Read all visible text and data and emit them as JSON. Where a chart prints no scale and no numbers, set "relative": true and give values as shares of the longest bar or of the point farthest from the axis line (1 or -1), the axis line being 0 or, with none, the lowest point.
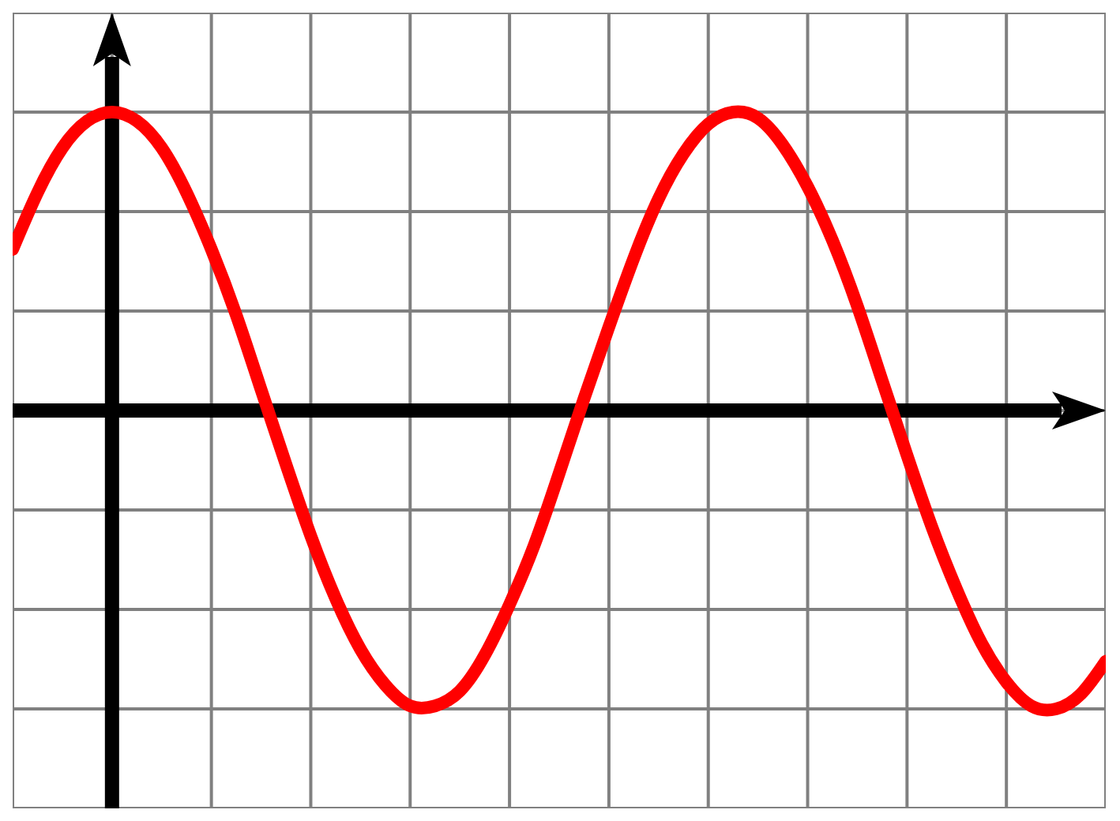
{
  "chart_data": {
    "type": "line",
    "relative": true,
    "grid": true,
    "marker": "none",
    "line_style": "solid",
    "categories": [
      null,
      null,
      null,
      null,
      null,
      null,
      null,
      null,
      null,
      null,
      null,
      null,
      null,
      null,
      null,
      null,
      null,
      null,
      null,
      null,
      null,
      null,
      null,
      null,
      null,
      null,
      null,
      null,
      null,
      null,
      null,
      null,
      null,
      null,
      null,
      null,
      null,
      null,
      null,
      null,
      null,
      null,
      null,
      null,
      null
    ],
    "series": [
      {
        "color": "#ff0000",
        "values": [
          0.54,
          0.73,
          0.88,
          0.97,
          1,
          0.97,
          0.88,
          0.73,
          0.54,
          0.32,
          0.07,
          -0.18,
          -0.42,
          -0.63,
          -0.8,
          -0.92,
          -0.99,
          -0.99,
          -0.94,
          -0.82,
          -0.65,
          -0.45,
          -0.21,
          0.04,
          0.28,
          0.51,
          0.71,
          0.86,
          0.96,
          1,
          0.98,
          0.89,
          0.75,
          0.57,
          0.35,
          0.1,
          -0.15,
          -0.39,
          -0.6,
          -0.78,
          -0.91,
          -0.99,
          -1,
          -0.95,
          -0.84
        ]
      }
    ]
  }
}
